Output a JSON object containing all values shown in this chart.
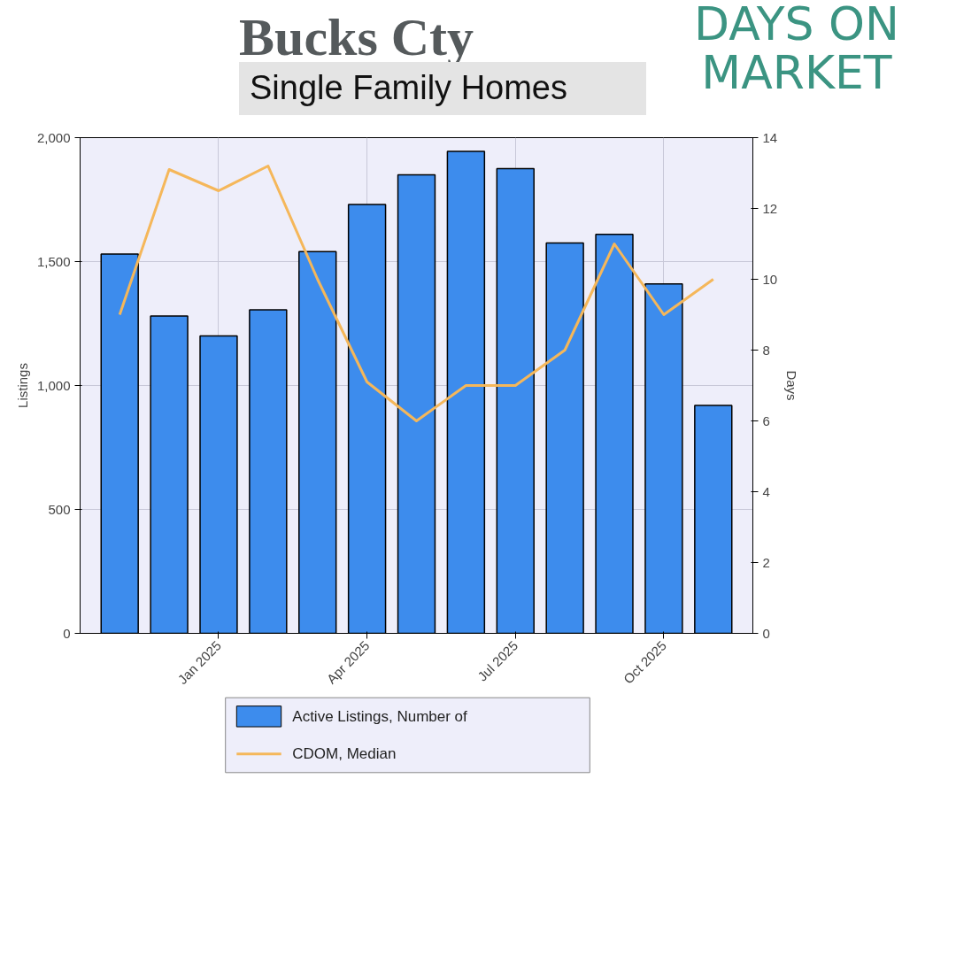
{
  "chart_data": {
    "type": "bar",
    "title": "Bucks Cty",
    "subtitle": "Single Family Homes",
    "annotations": [
      "DAYS ON MARKET"
    ],
    "categories": [
      null,
      null,
      "Jan 2025",
      null,
      null,
      "Apr 2025",
      null,
      null,
      "Jul 2025",
      null,
      null,
      "Oct 2025",
      null
    ],
    "series": [
      {
        "name": "Active Listings, Number of",
        "color": "#3d8ced",
        "values": [
          1530,
          1280,
          1200,
          1305,
          1540,
          1730,
          1850,
          1945,
          1875,
          1575,
          1610,
          1410,
          920
        ]
      },
      {
        "name": "CDOM, Median",
        "type": "line",
        "axis": "y2",
        "color": "#f5b75a",
        "values": [
          9,
          13.1,
          12.5,
          13.2,
          10,
          7.1,
          6,
          7,
          7,
          8,
          11,
          9,
          10
        ]
      }
    ],
    "ylabel": "Listings",
    "y2label": "Days",
    "ylim": [
      0,
      2000
    ],
    "yticks": [
      0,
      500,
      {
        "value": 1000,
        "label": "1,000"
      },
      {
        "value": 1500,
        "label": "1,500"
      },
      {
        "value": 2000,
        "label": "2,000"
      }
    ],
    "y2lim": [
      0,
      14
    ],
    "y2ticks": [
      0,
      2,
      4,
      6,
      8,
      10,
      12,
      14
    ],
    "grid": true,
    "legend": "bottom"
  }
}
